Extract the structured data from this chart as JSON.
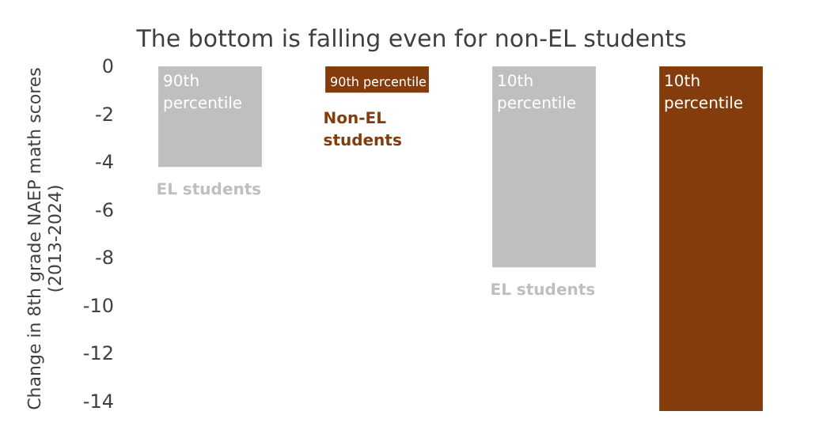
{
  "chart_data": {
    "type": "bar",
    "title": "The bottom is falling even for non-EL students",
    "ylabel": "Change in 8th grade NAEP math scores (2013-2024)",
    "categories": [
      "90th percentile",
      "90th percentile",
      "10th percentile",
      "10th percentile"
    ],
    "series": [
      {
        "name": "EL students",
        "color": "#bfbfbf",
        "values": [
          -4.2,
          null,
          -8.4,
          null
        ]
      },
      {
        "name": "Non-EL students",
        "color": "#843c0c",
        "values": [
          null,
          -1.1,
          null,
          -14.4
        ]
      }
    ],
    "ylim": [
      -14.4,
      0
    ],
    "yticks": [
      0,
      -2,
      -4,
      -6,
      -8,
      -10,
      -12,
      -14
    ],
    "grid": false,
    "legend": false
  }
}
